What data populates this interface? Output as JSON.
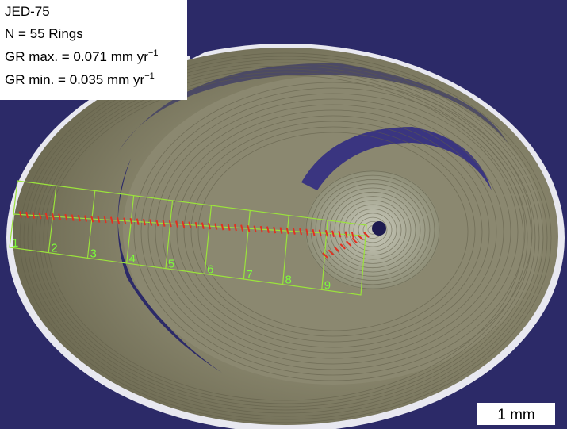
{
  "sample": "JED-75",
  "rings": "N = 55 Rings",
  "gr_max": {
    "text": "GR max. = 0.071 mm yr",
    "superscript": "−1"
  },
  "gr_min": {
    "text": "GR min. = 0.035 mm yr",
    "superscript": "−1"
  },
  "segments": [
    "1",
    "2",
    "3",
    "4",
    "5",
    "6",
    "7",
    "8",
    "9"
  ],
  "scale_bar": "1 mm"
}
